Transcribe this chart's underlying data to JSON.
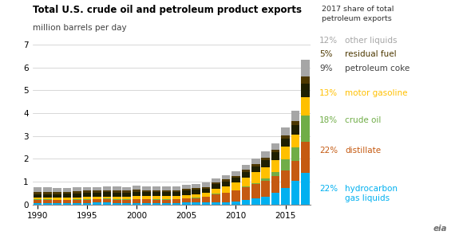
{
  "title": "Total U.S. crude oil and petroleum product exports",
  "subtitle": "million barrels per day",
  "years": [
    1990,
    1991,
    1992,
    1993,
    1994,
    1995,
    1996,
    1997,
    1998,
    1999,
    2000,
    2001,
    2002,
    2003,
    2004,
    2005,
    2006,
    2007,
    2008,
    2009,
    2010,
    2011,
    2012,
    2013,
    2014,
    2015,
    2016,
    2017
  ],
  "series": {
    "hydrocarbon_gas_liquids": [
      0.07,
      0.07,
      0.07,
      0.07,
      0.07,
      0.07,
      0.08,
      0.08,
      0.07,
      0.07,
      0.07,
      0.07,
      0.07,
      0.07,
      0.07,
      0.08,
      0.08,
      0.09,
      0.09,
      0.1,
      0.13,
      0.18,
      0.25,
      0.34,
      0.5,
      0.72,
      1.05,
      1.38
    ],
    "distillate": [
      0.13,
      0.13,
      0.12,
      0.12,
      0.13,
      0.14,
      0.14,
      0.15,
      0.14,
      0.14,
      0.15,
      0.15,
      0.14,
      0.14,
      0.15,
      0.18,
      0.2,
      0.23,
      0.35,
      0.4,
      0.48,
      0.57,
      0.65,
      0.7,
      0.74,
      0.78,
      0.85,
      1.38
    ],
    "crude_oil": [
      0.02,
      0.02,
      0.02,
      0.02,
      0.02,
      0.02,
      0.02,
      0.02,
      0.02,
      0.02,
      0.02,
      0.02,
      0.02,
      0.02,
      0.02,
      0.02,
      0.02,
      0.02,
      0.02,
      0.02,
      0.02,
      0.03,
      0.04,
      0.1,
      0.18,
      0.49,
      0.59,
      1.13
    ],
    "motor_gasoline": [
      0.07,
      0.07,
      0.08,
      0.09,
      0.09,
      0.1,
      0.1,
      0.1,
      0.11,
      0.11,
      0.12,
      0.12,
      0.13,
      0.13,
      0.13,
      0.14,
      0.15,
      0.16,
      0.22,
      0.28,
      0.32,
      0.4,
      0.47,
      0.5,
      0.52,
      0.53,
      0.56,
      0.82
    ],
    "petroleum_coke": [
      0.16,
      0.16,
      0.16,
      0.16,
      0.16,
      0.17,
      0.17,
      0.18,
      0.18,
      0.18,
      0.19,
      0.18,
      0.18,
      0.18,
      0.18,
      0.18,
      0.19,
      0.19,
      0.2,
      0.21,
      0.22,
      0.24,
      0.27,
      0.3,
      0.34,
      0.37,
      0.43,
      0.57
    ],
    "residual_fuel": [
      0.11,
      0.11,
      0.1,
      0.1,
      0.1,
      0.1,
      0.1,
      0.1,
      0.1,
      0.09,
      0.1,
      0.09,
      0.09,
      0.08,
      0.08,
      0.08,
      0.08,
      0.08,
      0.08,
      0.08,
      0.09,
      0.09,
      0.1,
      0.11,
      0.11,
      0.13,
      0.16,
      0.32
    ],
    "other_liquids": [
      0.19,
      0.19,
      0.18,
      0.17,
      0.17,
      0.17,
      0.16,
      0.16,
      0.16,
      0.16,
      0.16,
      0.16,
      0.16,
      0.16,
      0.16,
      0.17,
      0.17,
      0.18,
      0.18,
      0.19,
      0.2,
      0.21,
      0.23,
      0.26,
      0.29,
      0.34,
      0.46,
      0.75
    ]
  },
  "colors": {
    "hydrocarbon_gas_liquids": "#00b0f0",
    "distillate": "#c55a11",
    "crude_oil": "#70ad47",
    "motor_gasoline": "#ffc000",
    "petroleum_coke": "#1f1f00",
    "residual_fuel": "#4d3800",
    "other_liquids": "#a6a6a6"
  },
  "legend_labels": {
    "hydrocarbon_gas_liquids": "hydrocarbon\ngas liquids",
    "distillate": "distillate",
    "crude_oil": "crude oil",
    "motor_gasoline": "motor gasoline",
    "petroleum_coke": "petroleum coke",
    "residual_fuel": "residual fuel",
    "other_liquids": "other liquids"
  },
  "legend_pcts": {
    "hydrocarbon_gas_liquids": "22%",
    "distillate": "22%",
    "crude_oil": "18%",
    "motor_gasoline": "13%",
    "petroleum_coke": "9%",
    "residual_fuel": "5%",
    "other_liquids": "12%"
  },
  "legend_text_colors": {
    "hydrocarbon_gas_liquids": "#00b0f0",
    "distillate": "#c55a11",
    "crude_oil": "#70ad47",
    "motor_gasoline": "#ffc000",
    "petroleum_coke": "#404040",
    "residual_fuel": "#4d3800",
    "other_liquids": "#a6a6a6"
  },
  "legend_title": "2017 share of total\npetroleum exports",
  "ylim": [
    0,
    7
  ],
  "yticks": [
    0,
    1,
    2,
    3,
    4,
    5,
    6,
    7
  ],
  "background_color": "#ffffff",
  "grid_color": "#c8c8c8"
}
